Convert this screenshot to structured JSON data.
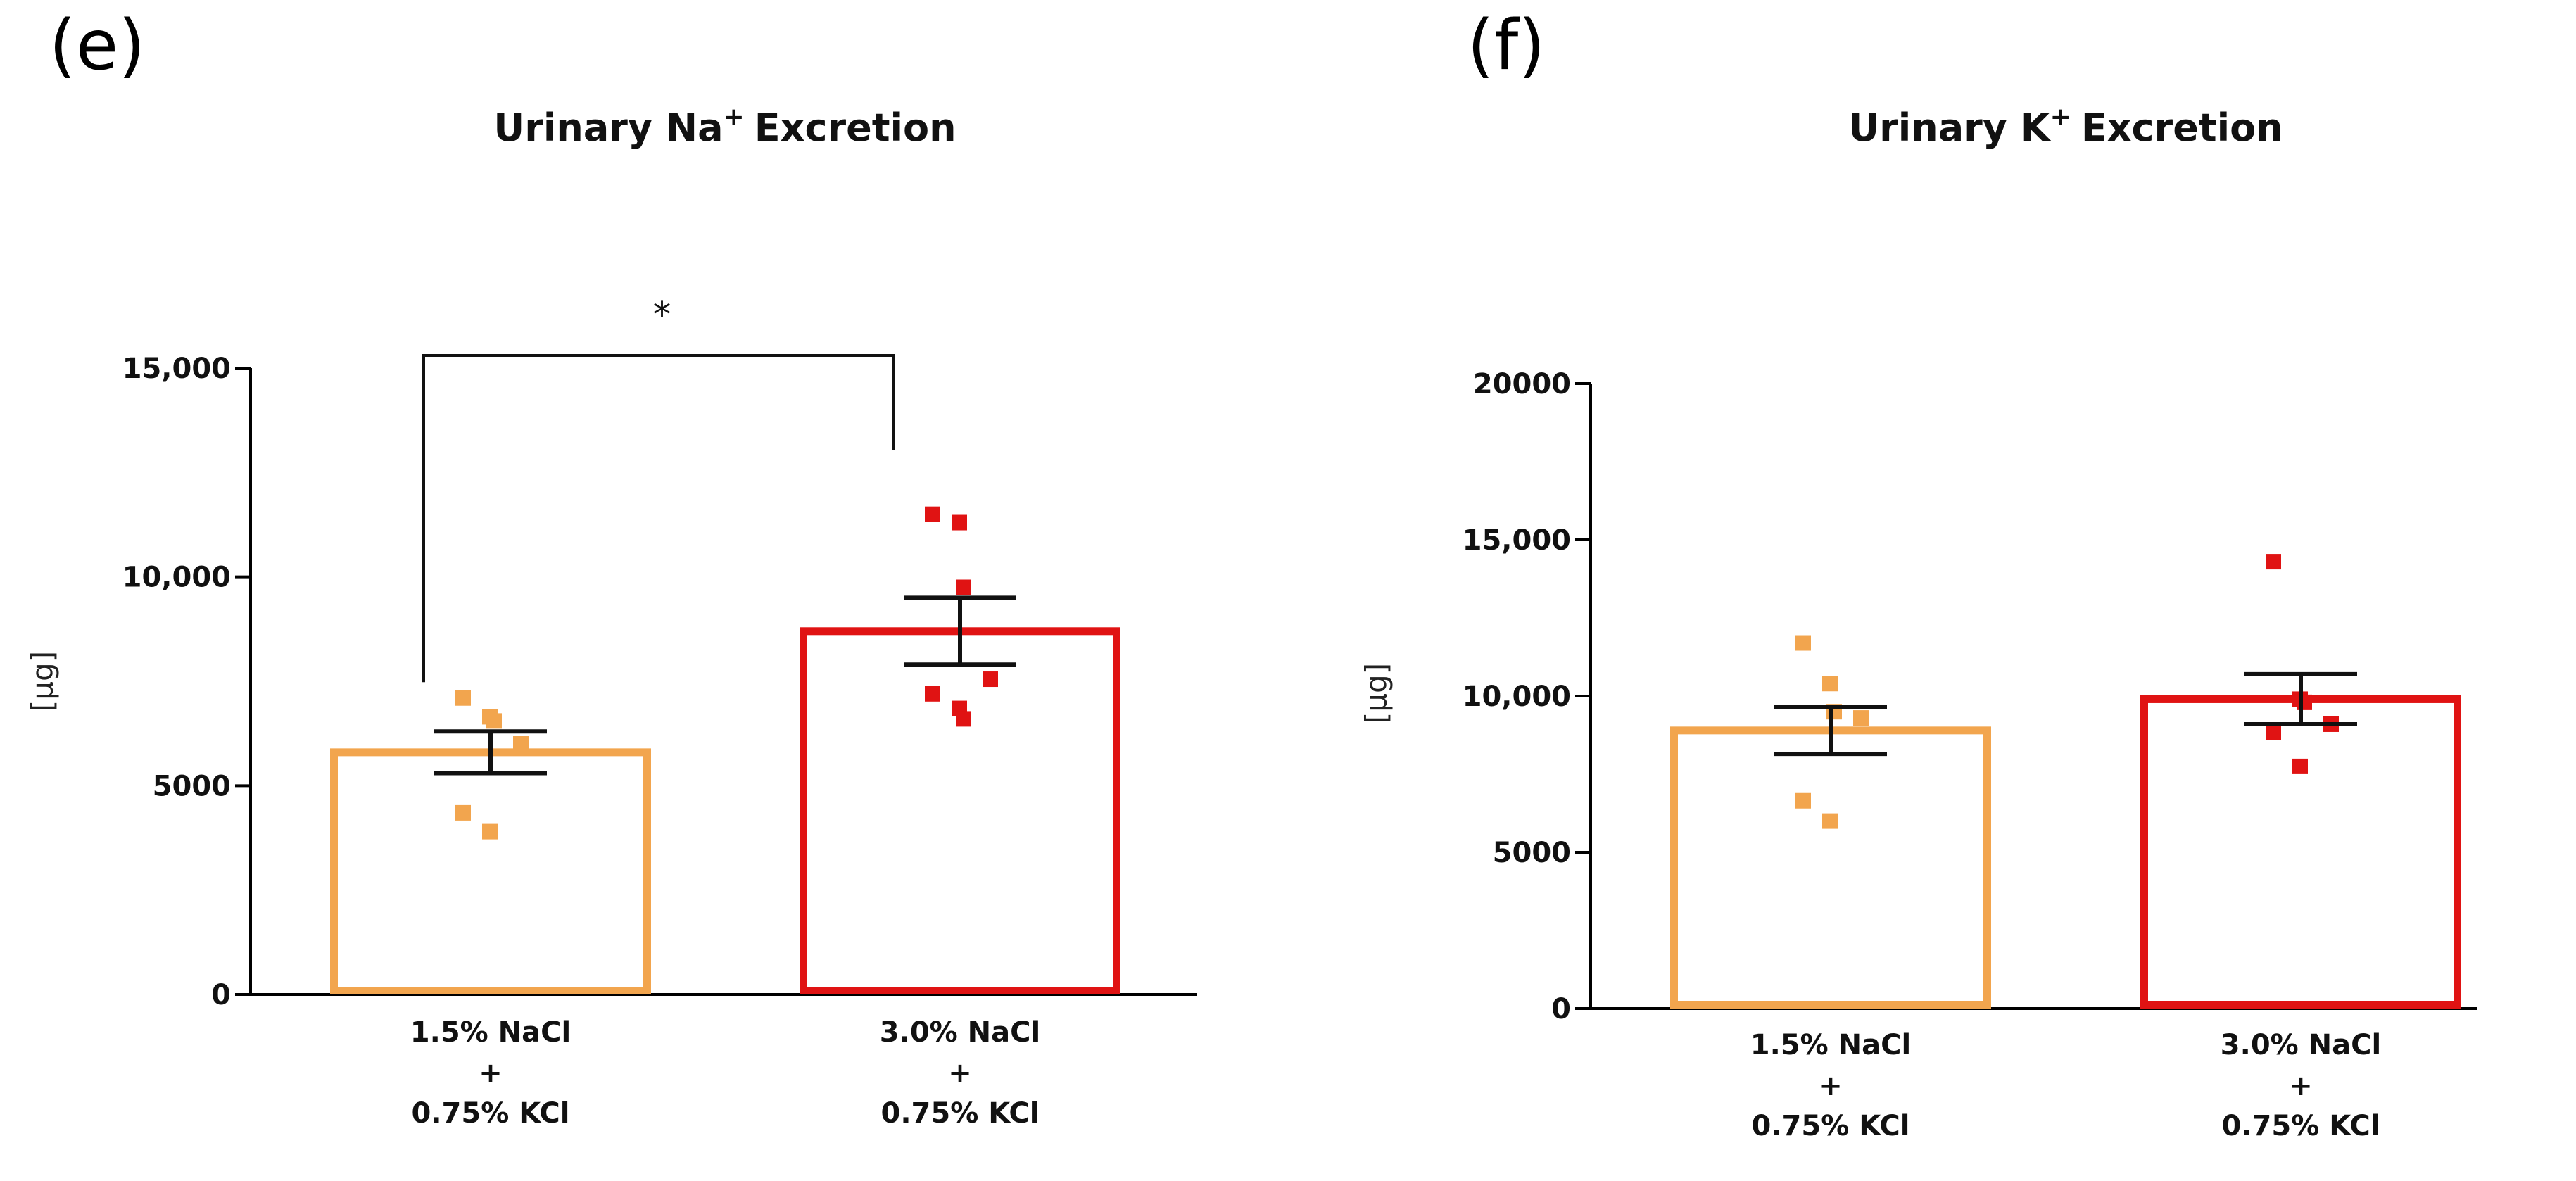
{
  "chart_data": [
    {
      "panel": "(e)",
      "type": "bar",
      "title": "Urinary Na",
      "title_superscript": "+",
      "title_suffix": "Excretion",
      "ylabel": "[µg]",
      "ylim": [
        0,
        15000
      ],
      "yticks": [
        0,
        5000,
        10000,
        15000
      ],
      "ytick_labels": [
        "0",
        "5000",
        "10,000",
        "15,000"
      ],
      "categories": [
        [
          "1.5% NaCl",
          "+",
          "0.75% KCl"
        ],
        [
          "3.0% NaCl",
          "+",
          "0.75% KCl"
        ]
      ],
      "colors": [
        "#F2A54E",
        "#E01313"
      ],
      "values": [
        5800,
        8700
      ],
      "sem": [
        500,
        800
      ],
      "points": [
        [
          7100,
          6650,
          6550,
          6000,
          4350,
          3900
        ],
        [
          11500,
          11300,
          9750,
          7550,
          7200,
          6850,
          6600
        ]
      ],
      "significance": {
        "between": [
          0,
          1
        ],
        "label": "*",
        "y": 15400
      }
    },
    {
      "panel": "(f)",
      "type": "bar",
      "title": "Urinary K",
      "title_superscript": "+",
      "title_suffix": "Excretion",
      "ylabel": "[µg]",
      "ylim": [
        0,
        20000
      ],
      "yticks": [
        0,
        5000,
        10000,
        15000,
        20000
      ],
      "ytick_labels": [
        "0",
        "5000",
        "10,000",
        "15,000",
        "20000"
      ],
      "categories": [
        [
          "1.5% NaCl",
          "+",
          "0.75% KCl"
        ],
        [
          "3.0% NaCl",
          "+",
          "0.75% KCl"
        ]
      ],
      "colors": [
        "#F2A54E",
        "#E01313"
      ],
      "values": [
        8900,
        9900
      ],
      "sem": [
        750,
        800
      ],
      "points": [
        [
          11700,
          10400,
          9500,
          9300,
          6650,
          6000
        ],
        [
          14300,
          9900,
          9800,
          9100,
          8850,
          7750
        ]
      ]
    }
  ]
}
